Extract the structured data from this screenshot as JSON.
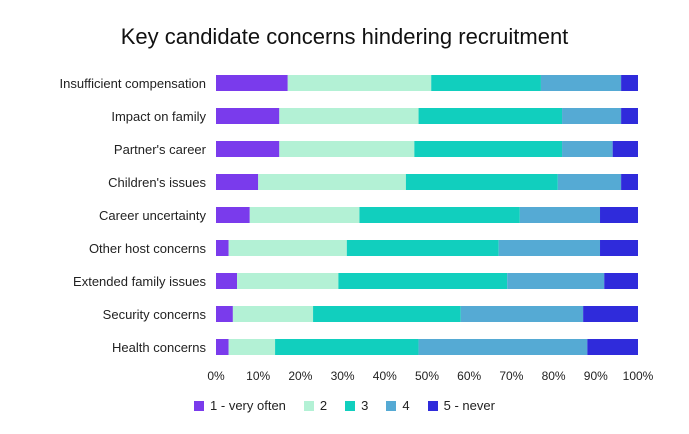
{
  "chart_data": {
    "type": "bar",
    "orientation": "horizontal",
    "stacked": true,
    "title": "Key candidate concerns hindering recruitment",
    "categories": [
      "Insufficient compensation",
      "Impact on family",
      "Partner's career",
      "Children's issues",
      "Career uncertainty",
      "Other host concerns",
      "Extended family issues",
      "Security concerns",
      "Health concerns"
    ],
    "series": [
      {
        "name": "1 - very often",
        "color": "#7a3bec",
        "values": [
          17,
          15,
          15,
          10,
          8,
          3,
          5,
          4,
          3
        ]
      },
      {
        "name": "2",
        "color": "#b3f1d5",
        "values": [
          34,
          33,
          32,
          35,
          26,
          28,
          24,
          19,
          11
        ]
      },
      {
        "name": "3",
        "color": "#11cfbe",
        "values": [
          26,
          34,
          35,
          36,
          38,
          36,
          40,
          35,
          34
        ]
      },
      {
        "name": "4",
        "color": "#55aad4",
        "values": [
          19,
          14,
          12,
          15,
          19,
          24,
          23,
          29,
          40
        ]
      },
      {
        "name": "5 - never",
        "color": "#2f2bdb",
        "values": [
          4,
          4,
          6,
          4,
          9,
          9,
          8,
          13,
          12
        ]
      }
    ],
    "xlim": [
      0,
      100
    ],
    "xticks": [
      "0%",
      "10%",
      "20%",
      "30%",
      "40%",
      "50%",
      "60%",
      "70%",
      "80%",
      "90%",
      "100%"
    ],
    "xlabel": "",
    "ylabel": "",
    "legend_position": "bottom"
  }
}
